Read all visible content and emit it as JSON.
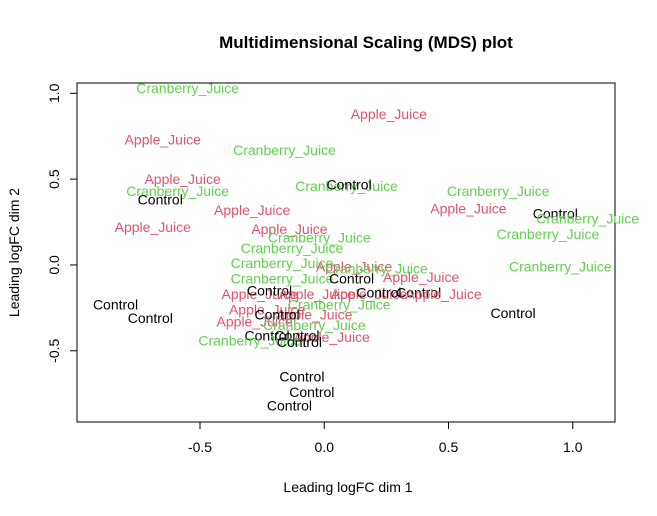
{
  "chart_data": {
    "type": "scatter",
    "title": "Multidimensional Scaling (MDS) plot",
    "xlabel": "Leading logFC dim 1",
    "ylabel": "Leading logFC dim 2",
    "xlim": [
      -0.995,
      1.17
    ],
    "ylim": [
      -0.915,
      1.06
    ],
    "xticks": [
      -0.5,
      0.0,
      0.5,
      1.0
    ],
    "xtick_labels": [
      "-0.5",
      "0.0",
      "0.5",
      "1.0"
    ],
    "yticks": [
      -0.5,
      0.0,
      0.5,
      1.0
    ],
    "ytick_labels": [
      "-0.5",
      "0.0",
      "0.5",
      "1.0"
    ],
    "grid": false,
    "colors": {
      "Control": "#000000",
      "Apple_Juice": "#DF536B",
      "Cranberry_Juice": "#61D04F"
    },
    "points": [
      {
        "label": "Cranberry_Juice",
        "group": "Cranberry_Juice",
        "x": -0.55,
        "y": 1.03
      },
      {
        "label": "Apple_Juice",
        "group": "Apple_Juice",
        "x": 0.26,
        "y": 0.88
      },
      {
        "label": "Apple_Juice",
        "group": "Apple_Juice",
        "x": -0.65,
        "y": 0.73
      },
      {
        "label": "Cranberry_Juice",
        "group": "Cranberry_Juice",
        "x": -0.16,
        "y": 0.67
      },
      {
        "label": "Apple_Juice",
        "group": "Apple_Juice",
        "x": -0.57,
        "y": 0.5
      },
      {
        "label": "Cranberry_Juice",
        "group": "Cranberry_Juice",
        "x": -0.59,
        "y": 0.43
      },
      {
        "label": "Control",
        "group": "Control",
        "x": -0.66,
        "y": 0.38
      },
      {
        "label": "Cranberry_Juice",
        "group": "Cranberry_Juice",
        "x": 0.09,
        "y": 0.46
      },
      {
        "label": "Control",
        "group": "Control",
        "x": 0.1,
        "y": 0.47
      },
      {
        "label": "Apple_Juice",
        "group": "Apple_Juice",
        "x": -0.29,
        "y": 0.32
      },
      {
        "label": "Apple_Juice",
        "group": "Apple_Juice",
        "x": -0.69,
        "y": 0.22
      },
      {
        "label": "Cranberry_Juice",
        "group": "Cranberry_Juice",
        "x": 0.7,
        "y": 0.43
      },
      {
        "label": "Apple_Juice",
        "group": "Apple_Juice",
        "x": 0.58,
        "y": 0.33
      },
      {
        "label": "Control",
        "group": "Control",
        "x": 0.93,
        "y": 0.3
      },
      {
        "label": "Cranberry_Juice",
        "group": "Cranberry_Juice",
        "x": 1.06,
        "y": 0.27
      },
      {
        "label": "Cranberry_Juice",
        "group": "Cranberry_Juice",
        "x": 0.9,
        "y": 0.18
      },
      {
        "label": "Apple_Juice",
        "group": "Apple_Juice",
        "x": -0.14,
        "y": 0.21
      },
      {
        "label": "Cranberry_Juice",
        "group": "Cranberry_Juice",
        "x": -0.02,
        "y": 0.16
      },
      {
        "label": "Cranberry_Juice",
        "group": "Cranberry_Juice",
        "x": -0.13,
        "y": 0.1
      },
      {
        "label": "Cranberry_Juice",
        "group": "Cranberry_Juice",
        "x": -0.17,
        "y": 0.01
      },
      {
        "label": "Apple_Juice",
        "group": "Apple_Juice",
        "x": 0.12,
        "y": -0.01
      },
      {
        "label": "Cranberry_Juice",
        "group": "Cranberry_Juice",
        "x": 0.21,
        "y": -0.02
      },
      {
        "label": "Cranberry_Juice",
        "group": "Cranberry_Juice",
        "x": 0.95,
        "y": -0.01
      },
      {
        "label": "Cranberry_Juice",
        "group": "Cranberry_Juice",
        "x": -0.17,
        "y": -0.08
      },
      {
        "label": "Control",
        "group": "Control",
        "x": 0.11,
        "y": -0.08
      },
      {
        "label": "Apple_Juice",
        "group": "Apple_Juice",
        "x": 0.39,
        "y": -0.07
      },
      {
        "label": "Apple_Juice",
        "group": "Apple_Juice",
        "x": -0.26,
        "y": -0.17
      },
      {
        "label": "Control",
        "group": "Control",
        "x": -0.22,
        "y": -0.15
      },
      {
        "label": "Apple_Juice",
        "group": "Apple_Juice",
        "x": -0.03,
        "y": -0.17
      },
      {
        "label": "Apple_Juice",
        "group": "Apple_Juice",
        "x": 0.18,
        "y": -0.17
      },
      {
        "label": "Control",
        "group": "Control",
        "x": 0.22,
        "y": -0.16
      },
      {
        "label": "Control",
        "group": "Control",
        "x": 0.38,
        "y": -0.16
      },
      {
        "label": "Apple_Juice",
        "group": "Apple_Juice",
        "x": 0.48,
        "y": -0.17
      },
      {
        "label": "Cranberry_Juice",
        "group": "Cranberry_Juice",
        "x": 0.06,
        "y": -0.23
      },
      {
        "label": "Control",
        "group": "Control",
        "x": -0.84,
        "y": -0.23
      },
      {
        "label": "Control",
        "group": "Control",
        "x": -0.7,
        "y": -0.31
      },
      {
        "label": "Control",
        "group": "Control",
        "x": 0.76,
        "y": -0.28
      },
      {
        "label": "Apple_Juice",
        "group": "Apple_Juice",
        "x": -0.23,
        "y": -0.26
      },
      {
        "label": "Apple_Juice",
        "group": "Apple_Juice",
        "x": -0.04,
        "y": -0.29
      },
      {
        "label": "Control",
        "group": "Control",
        "x": -0.19,
        "y": -0.29
      },
      {
        "label": "Apple_Juice",
        "group": "Apple_Juice",
        "x": -0.28,
        "y": -0.33
      },
      {
        "label": "Cranberry_Juice",
        "group": "Cranberry_Juice",
        "x": -0.04,
        "y": -0.35
      },
      {
        "label": "Apple_Juice",
        "group": "Apple_Juice",
        "x": 0.03,
        "y": -0.42
      },
      {
        "label": "Control",
        "group": "Control",
        "x": -0.23,
        "y": -0.41
      },
      {
        "label": "Control",
        "group": "Control",
        "x": -0.11,
        "y": -0.41
      },
      {
        "label": "Cranberry_Juice",
        "group": "Cranberry_Juice",
        "x": -0.3,
        "y": -0.44
      },
      {
        "label": "Control",
        "group": "Control",
        "x": -0.1,
        "y": -0.45
      },
      {
        "label": "Control",
        "group": "Control",
        "x": -0.09,
        "y": -0.65
      },
      {
        "label": "Control",
        "group": "Control",
        "x": -0.05,
        "y": -0.74
      },
      {
        "label": "Control",
        "group": "Control",
        "x": -0.14,
        "y": -0.82
      }
    ]
  }
}
